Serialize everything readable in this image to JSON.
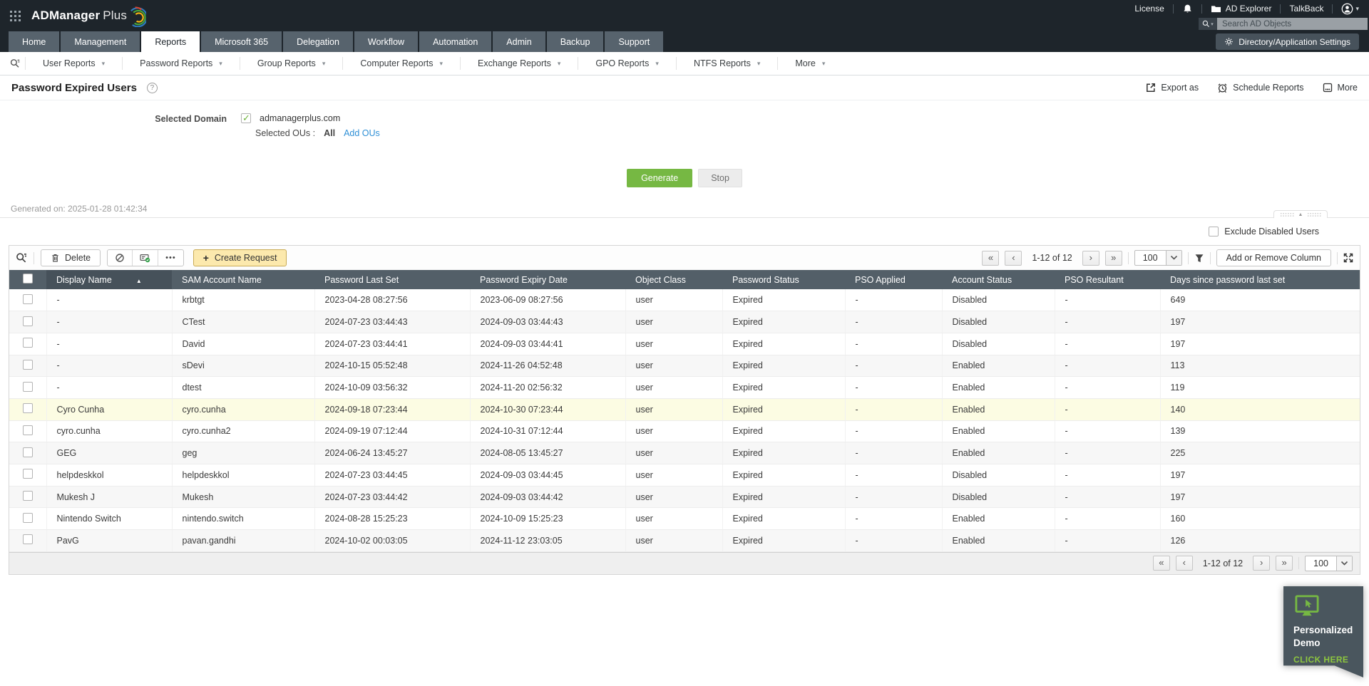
{
  "topbar": {
    "logo_bold": "ADManager",
    "logo_light": "Plus",
    "license": "License",
    "ad_explorer": "AD Explorer",
    "talkback": "TalkBack",
    "search_placeholder": "Search AD Objects"
  },
  "nav": {
    "tabs": [
      "Home",
      "Management",
      "Reports",
      "Microsoft 365",
      "Delegation",
      "Workflow",
      "Automation",
      "Admin",
      "Backup",
      "Support"
    ],
    "active_tab": "Reports",
    "settings_button": "Directory/Application Settings"
  },
  "subnav": {
    "items": [
      "User Reports",
      "Password Reports",
      "Group Reports",
      "Computer Reports",
      "Exchange Reports",
      "GPO Reports",
      "NTFS Reports",
      "More"
    ]
  },
  "page": {
    "title": "Password Expired Users",
    "actions": [
      {
        "label": "Export as"
      },
      {
        "label": "Schedule Reports"
      },
      {
        "label": "More"
      }
    ]
  },
  "domain": {
    "label": "Selected Domain",
    "domain_name": "admanagerplus.com",
    "ou_label": "Selected OUs :",
    "ou_value": "All",
    "add_ous_link": "Add OUs"
  },
  "generate": {
    "generate_button": "Generate",
    "stop_button": "Stop",
    "generated_on": "Generated on: 2025-01-28 01:42:34"
  },
  "filters": {
    "exclude_disabled_label": "Exclude Disabled Users"
  },
  "toolbar": {
    "delete_button": "Delete",
    "create_request_button": "Create Request",
    "add_remove_column_button": "Add or Remove Column"
  },
  "pagination": {
    "label": "1-12 of 12",
    "page_size": "100",
    "first": "«",
    "prev": "‹",
    "next": "›",
    "last": "»"
  },
  "table": {
    "columns": [
      "Display Name",
      "SAM Account Name",
      "Password Last Set",
      "Password Expiry Date",
      "Object Class",
      "Password Status",
      "PSO Applied",
      "Account Status",
      "PSO Resultant",
      "Days since password last set"
    ],
    "sorted_column": "Display Name",
    "sort_direction": "asc",
    "highlighted_row": 5,
    "rows": [
      [
        "-",
        "krbtgt",
        "2023-04-28 08:27:56",
        "2023-06-09 08:27:56",
        "user",
        "Expired",
        "-",
        "Disabled",
        "-",
        "649"
      ],
      [
        "-",
        "CTest",
        "2024-07-23 03:44:43",
        "2024-09-03 03:44:43",
        "user",
        "Expired",
        "-",
        "Disabled",
        "-",
        "197"
      ],
      [
        "-",
        "David",
        "2024-07-23 03:44:41",
        "2024-09-03 03:44:41",
        "user",
        "Expired",
        "-",
        "Disabled",
        "-",
        "197"
      ],
      [
        "-",
        "sDevi",
        "2024-10-15 05:52:48",
        "2024-11-26 04:52:48",
        "user",
        "Expired",
        "-",
        "Enabled",
        "-",
        "113"
      ],
      [
        "-",
        "dtest",
        "2024-10-09 03:56:32",
        "2024-11-20 02:56:32",
        "user",
        "Expired",
        "-",
        "Enabled",
        "-",
        "119"
      ],
      [
        "Cyro Cunha",
        "cyro.cunha",
        "2024-09-18 07:23:44",
        "2024-10-30 07:23:44",
        "user",
        "Expired",
        "-",
        "Enabled",
        "-",
        "140"
      ],
      [
        "cyro.cunha",
        "cyro.cunha2",
        "2024-09-19 07:12:44",
        "2024-10-31 07:12:44",
        "user",
        "Expired",
        "-",
        "Enabled",
        "-",
        "139"
      ],
      [
        "GEG",
        "geg",
        "2024-06-24 13:45:27",
        "2024-08-05 13:45:27",
        "user",
        "Expired",
        "-",
        "Enabled",
        "-",
        "225"
      ],
      [
        "helpdeskkol",
        "helpdeskkol",
        "2024-07-23 03:44:45",
        "2024-09-03 03:44:45",
        "user",
        "Expired",
        "-",
        "Disabled",
        "-",
        "197"
      ],
      [
        "Mukesh J",
        "Mukesh",
        "2024-07-23 03:44:42",
        "2024-09-03 03:44:42",
        "user",
        "Expired",
        "-",
        "Disabled",
        "-",
        "197"
      ],
      [
        "Nintendo Switch",
        "nintendo.switch",
        "2024-08-28 15:25:23",
        "2024-10-09 15:25:23",
        "user",
        "Expired",
        "-",
        "Enabled",
        "-",
        "160"
      ],
      [
        "PavG",
        "pavan.gandhi",
        "2024-10-02 00:03:05",
        "2024-11-12 23:03:05",
        "user",
        "Expired",
        "-",
        "Enabled",
        "-",
        "126"
      ]
    ]
  },
  "demo_popup": {
    "title_line1": "Personalized",
    "title_line2": "Demo",
    "cta": "CLICK HERE"
  },
  "colors": {
    "accent_green": "#76b843",
    "link_blue": "#2e8fd6",
    "header_slate": "#535f68",
    "highlight_yellow": "#fcfce3",
    "create_request_yellow": "#fce9ad",
    "topbar_dark": "#1e252b"
  }
}
